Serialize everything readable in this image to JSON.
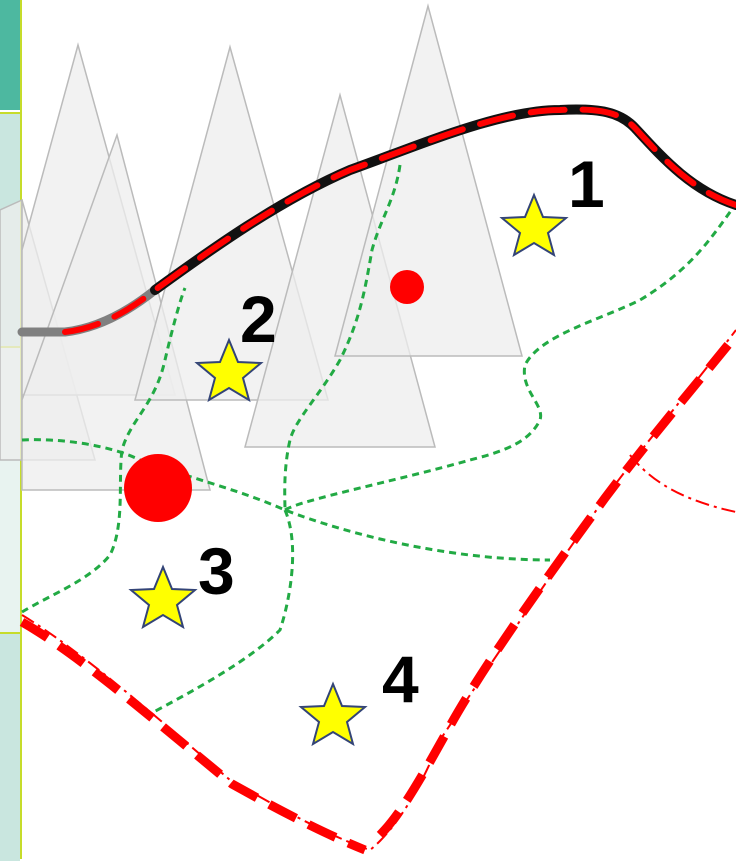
{
  "colors": {
    "sidebar_top": "#4db8a0",
    "sidebar_mid": "#c9e6df",
    "sidebar_light": "#e8f3f0",
    "sidebar_border": "#c6dc2a",
    "road": "#111111",
    "road_grey": "#808080",
    "boundary": "#ff0000",
    "trail": "#22aa44",
    "tree": "#eeeeee",
    "tree_stroke": "#bbbbbb",
    "star_fill": "#ffff00",
    "star_stroke": "#334477",
    "point": "#ff0000"
  },
  "icons": {
    "marker": "star-icon",
    "poi": "red-dot-icon",
    "tree": "tree-triangle-icon"
  },
  "sites": [
    {
      "id": "site-1",
      "label": "1"
    },
    {
      "id": "site-2",
      "label": "2"
    },
    {
      "id": "site-3",
      "label": "3"
    },
    {
      "id": "site-4",
      "label": "4"
    }
  ]
}
